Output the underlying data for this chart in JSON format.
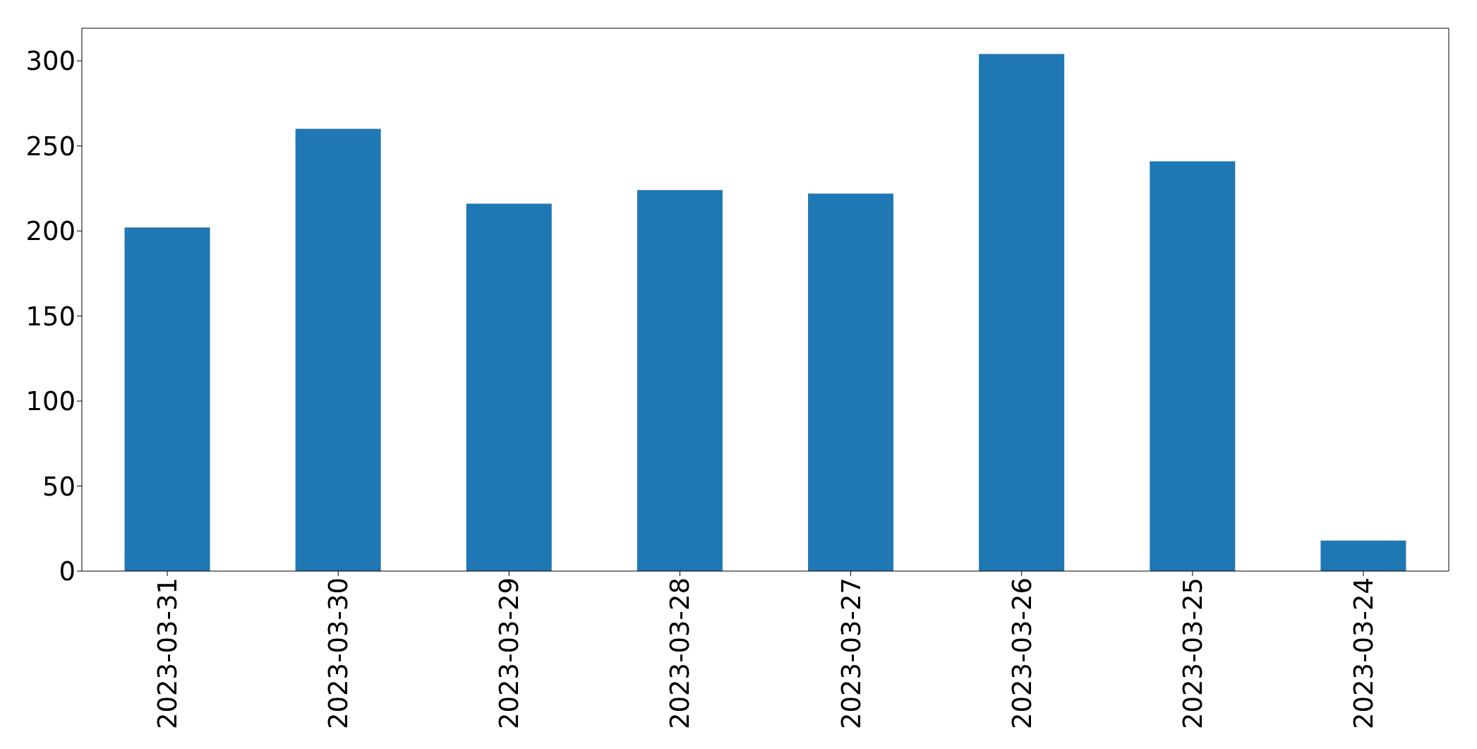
{
  "chart_data": {
    "type": "bar",
    "categories": [
      "2023-03-31",
      "2023-03-30",
      "2023-03-29",
      "2023-03-28",
      "2023-03-27",
      "2023-03-26",
      "2023-03-25",
      "2023-03-24"
    ],
    "values": [
      202,
      260,
      216,
      224,
      222,
      304,
      241,
      18
    ],
    "color": "#1f77b4",
    "ylim": [
      0,
      319.2
    ],
    "yticks": [
      0,
      50,
      100,
      150,
      200,
      250,
      300
    ]
  }
}
